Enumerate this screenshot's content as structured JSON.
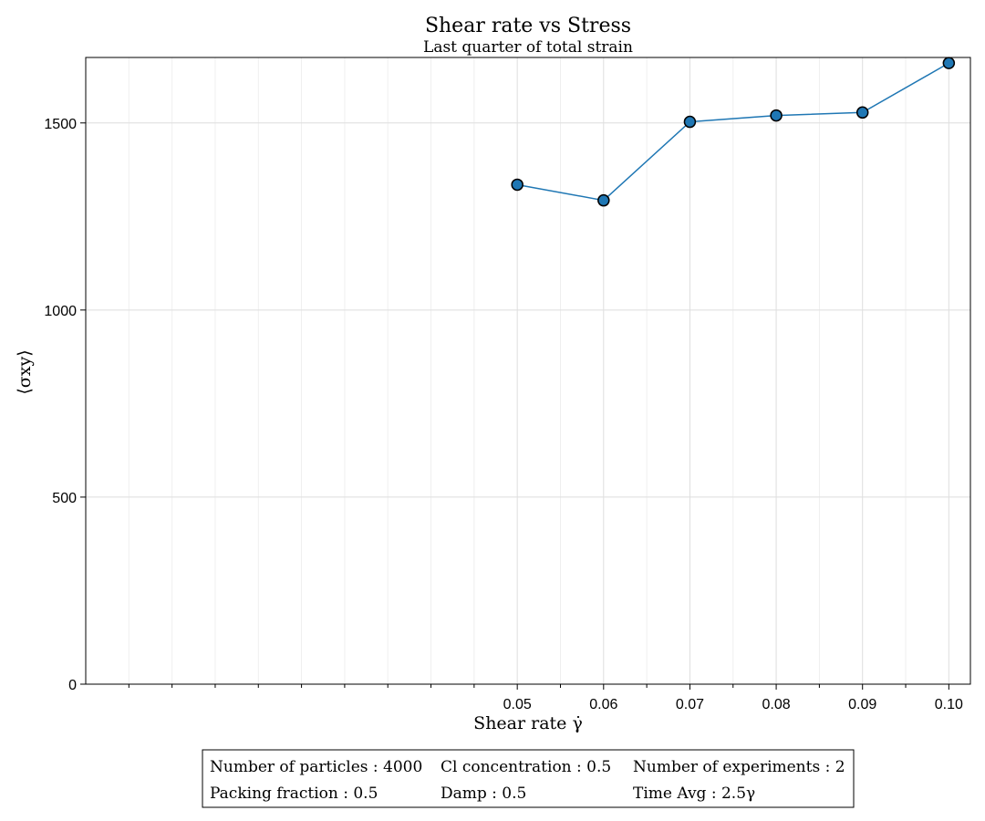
{
  "chart_data": {
    "type": "line",
    "title": "Shear rate vs Stress",
    "subtitle": "Last quarter of total strain",
    "xlabel": "Shear rate γ̇",
    "ylabel": "⟨σxy⟩",
    "x": [
      0.05,
      0.06,
      0.07,
      0.08,
      0.09,
      0.1
    ],
    "series": [
      {
        "values": [
          1335,
          1293,
          1503,
          1520,
          1528,
          1660
        ]
      }
    ],
    "xlim": [
      0.0,
      0.1025
    ],
    "ylim": [
      0,
      1675
    ],
    "xticks": [
      "0.05",
      "0.06",
      "0.07",
      "0.08",
      "0.09",
      "0.10"
    ],
    "xtick_values": [
      0.05,
      0.06,
      0.07,
      0.08,
      0.09,
      0.1
    ],
    "yticks": [
      "0",
      "500",
      "1000",
      "1500"
    ],
    "ytick_values": [
      0,
      500,
      1000,
      1500
    ],
    "grid": true,
    "line_color": "#1f77b4",
    "marker_color": "#1f77b4",
    "legend_placement": "bottom"
  },
  "info_box": {
    "rows": [
      [
        "Number of particles : 4000",
        "Cl concentration : 0.5",
        "Number of experiments : 2"
      ],
      [
        "Packing fraction : 0.5",
        "Damp : 0.5",
        "Time Avg : 2.5γ"
      ]
    ]
  }
}
